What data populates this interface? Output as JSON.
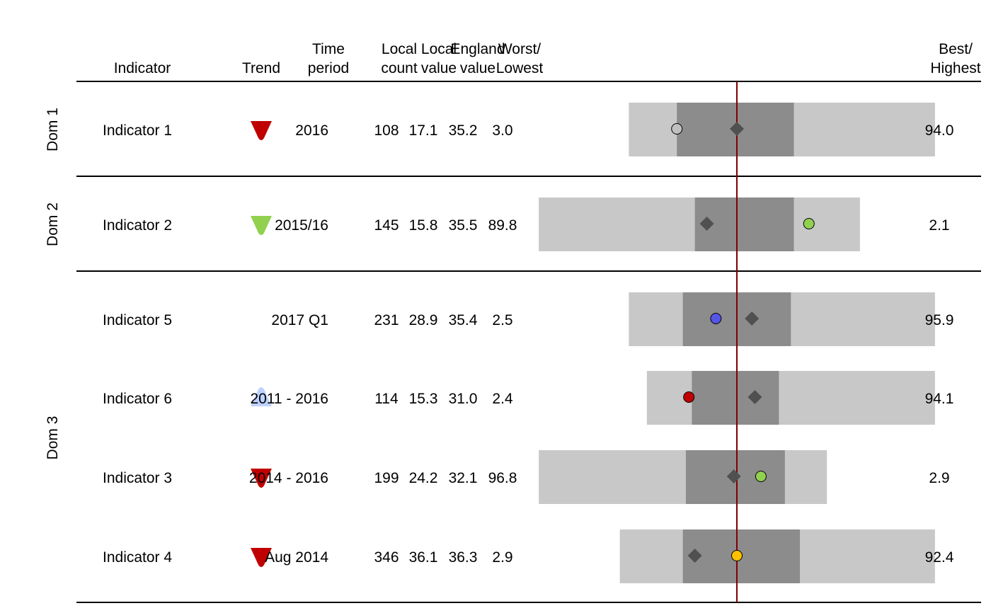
{
  "chart_data": {
    "type": "spine",
    "headers": {
      "indicator": "Indicator",
      "trend": "Trend",
      "time_period": [
        "Time",
        "period"
      ],
      "local_count": [
        "Local",
        "count"
      ],
      "local_value": [
        "Local",
        "value"
      ],
      "england_value": [
        "England",
        "value"
      ],
      "worst_lowest": [
        "Worst/",
        "Lowest"
      ],
      "best_highest": [
        "Best/",
        "Highest"
      ]
    },
    "domains": [
      {
        "label": "Dom 1",
        "rows": 1
      },
      {
        "label": "Dom 2",
        "rows": 1
      },
      {
        "label": "Dom 3",
        "rows": 4
      }
    ],
    "rows": [
      {
        "indicator": "Indicator 1",
        "trend": "down",
        "trend_color": "#c00000",
        "time_period": "2016",
        "local_count": "108",
        "local_value": "17.1",
        "england_value": "35.2",
        "worst": "3.0",
        "best": "94.0",
        "bar": {
          "outer": [
            -0.36,
            0.66
          ],
          "inner": [
            -0.2,
            0.19
          ]
        },
        "local_pos": -0.2,
        "england_pos": 0.0,
        "local_color": "#c0c0c0"
      },
      {
        "indicator": "Indicator 2",
        "trend": "down",
        "trend_color": "#92d050",
        "time_period": "2015/16",
        "local_count": "145",
        "local_value": "15.8",
        "england_value": "35.5",
        "worst": "89.8",
        "best": "2.1",
        "bar": {
          "outer": [
            -0.66,
            0.41
          ],
          "inner": [
            -0.14,
            0.19
          ]
        },
        "local_pos": 0.24,
        "england_pos": -0.1,
        "local_color": "#92d050"
      },
      {
        "indicator": "Indicator 5",
        "trend": "none",
        "trend_color": "",
        "time_period": "2017 Q1",
        "local_count": "231",
        "local_value": "28.9",
        "england_value": "35.4",
        "worst": "2.5",
        "best": "95.9",
        "bar": {
          "outer": [
            -0.36,
            0.66
          ],
          "inner": [
            -0.18,
            0.18
          ]
        },
        "local_pos": -0.07,
        "england_pos": 0.05,
        "local_color": "#5555e6"
      },
      {
        "indicator": "Indicator 6",
        "trend": "up",
        "trend_color": "#bed2ff",
        "time_period": "2011 - 2016",
        "local_count": "114",
        "local_value": "15.3",
        "england_value": "31.0",
        "worst": "2.4",
        "best": "94.1",
        "bar": {
          "outer": [
            -0.3,
            0.66
          ],
          "inner": [
            -0.15,
            0.14
          ]
        },
        "local_pos": -0.16,
        "england_pos": 0.06,
        "local_color": "#c00000"
      },
      {
        "indicator": "Indicator 3",
        "trend": "down",
        "trend_color": "#c00000",
        "time_period": "2014 - 2016",
        "local_count": "199",
        "local_value": "24.2",
        "england_value": "32.1",
        "worst": "96.8",
        "best": "2.9",
        "bar": {
          "outer": [
            -0.66,
            0.3
          ],
          "inner": [
            -0.17,
            0.16
          ]
        },
        "local_pos": 0.08,
        "england_pos": -0.01,
        "local_color": "#92d050"
      },
      {
        "indicator": "Indicator 4",
        "trend": "down",
        "trend_color": "#c00000",
        "time_period": "Aug 2014",
        "local_count": "346",
        "local_value": "36.1",
        "england_value": "36.3",
        "worst": "2.9",
        "best": "92.4",
        "bar": {
          "outer": [
            -0.39,
            0.66
          ],
          "inner": [
            -0.18,
            0.21
          ]
        },
        "local_pos": 0.0,
        "england_pos": -0.14,
        "local_color": "#ffc000"
      }
    ],
    "colors": {
      "outer_bar": "#c8c8c8",
      "inner_bar": "#8c8c8c",
      "england_marker": "#505050",
      "benchmark_line": "#800000",
      "rule": "#000000"
    }
  }
}
